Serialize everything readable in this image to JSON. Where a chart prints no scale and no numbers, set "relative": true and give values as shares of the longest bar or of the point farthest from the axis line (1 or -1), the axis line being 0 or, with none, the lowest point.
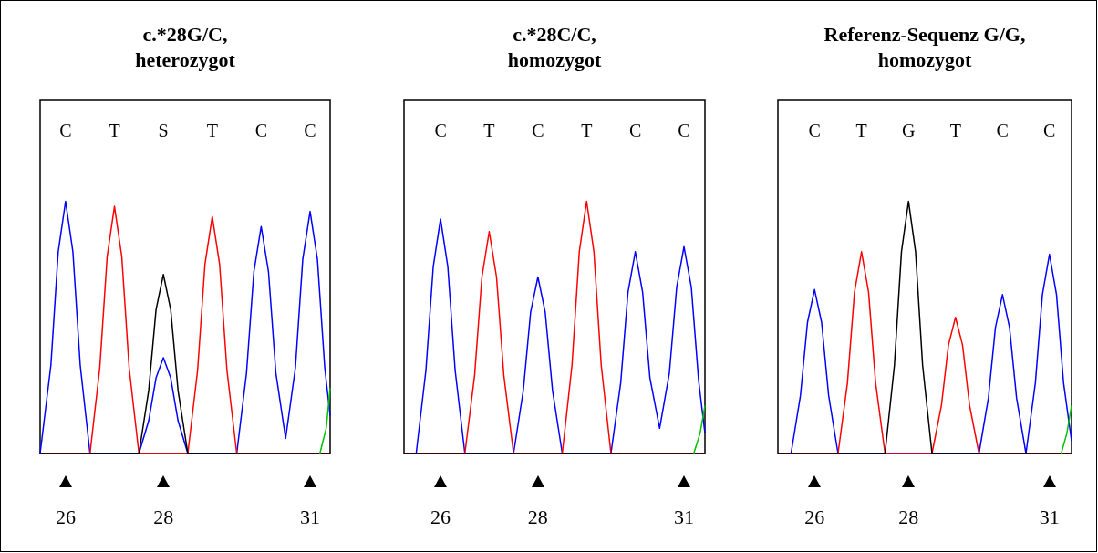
{
  "chart_data": [
    {
      "type": "line",
      "title": "c.*28G/C,\nheterozygot",
      "relative": true,
      "xlim": [
        25.48,
        31.41
      ],
      "xticks": [
        26,
        28,
        31
      ],
      "annotations": [
        "C",
        "T",
        "S",
        "T",
        "C",
        "C"
      ],
      "grid": false,
      "marker": "none",
      "series": [
        {
          "color": "#0000ff",
          "x": [
            25.48,
            25.7,
            25.85,
            26,
            26.15,
            26.3,
            26.5,
            27.5,
            27.7,
            27.85,
            28,
            28.15,
            28.3,
            28.5,
            29.5,
            29.7,
            29.85,
            30,
            30.15,
            30.3,
            30.5,
            30.7,
            30.85,
            31,
            31.15,
            31.3,
            31.41
          ],
          "values": [
            0,
            0.35,
            0.8,
            1,
            0.8,
            0.35,
            0,
            0,
            0.13,
            0.3,
            0.38,
            0.3,
            0.13,
            0,
            0,
            0.32,
            0.72,
            0.9,
            0.72,
            0.32,
            0.06,
            0.34,
            0.77,
            0.96,
            0.77,
            0.34,
            0.15
          ]
        },
        {
          "color": "#ff0000",
          "x": [
            25.48,
            26.5,
            26.7,
            26.85,
            27,
            27.15,
            27.3,
            27.5,
            28.5,
            28.7,
            28.85,
            29,
            29.15,
            29.3,
            29.5,
            31.41
          ],
          "values": [
            0,
            0,
            0.34,
            0.78,
            0.98,
            0.78,
            0.34,
            0,
            0,
            0.33,
            0.75,
            0.94,
            0.75,
            0.33,
            0,
            0
          ]
        },
        {
          "color": "#000000",
          "x": [
            25.48,
            27.5,
            27.7,
            27.85,
            28,
            28.15,
            28.3,
            28.5,
            31.41
          ],
          "values": [
            0,
            0,
            0.25,
            0.57,
            0.71,
            0.57,
            0.25,
            0,
            0
          ]
        },
        {
          "color": "#00c000",
          "x": [
            31.2,
            31.33,
            31.41
          ],
          "values": [
            0,
            0.1,
            0.26
          ]
        }
      ]
    },
    {
      "type": "line",
      "title": "c.*28C/C,\nhomozygot",
      "relative": true,
      "xlim": [
        25.25,
        31.43
      ],
      "xticks": [
        26,
        28,
        31
      ],
      "annotations": [
        "C",
        "T",
        "C",
        "T",
        "C",
        "C"
      ],
      "grid": false,
      "marker": "none",
      "series": [
        {
          "color": "#0000ff",
          "x": [
            25.25,
            25.5,
            25.7,
            25.85,
            26,
            26.15,
            26.3,
            26.5,
            27.5,
            27.7,
            27.85,
            28,
            28.15,
            28.3,
            28.5,
            29.5,
            29.7,
            29.85,
            30,
            30.15,
            30.3,
            30.5,
            30.7,
            30.85,
            31,
            31.15,
            31.3,
            31.43
          ],
          "values": [
            0,
            0,
            0.33,
            0.74,
            0.93,
            0.74,
            0.33,
            0,
            0,
            0.25,
            0.56,
            0.7,
            0.56,
            0.25,
            0,
            0,
            0.28,
            0.64,
            0.8,
            0.64,
            0.3,
            0.1,
            0.32,
            0.66,
            0.82,
            0.66,
            0.29,
            0.08
          ]
        },
        {
          "color": "#ff0000",
          "x": [
            25.25,
            26.5,
            26.7,
            26.85,
            27,
            27.15,
            27.3,
            27.5,
            28.5,
            28.7,
            28.85,
            29,
            29.15,
            29.3,
            29.5,
            31.43
          ],
          "values": [
            0,
            0,
            0.31,
            0.7,
            0.88,
            0.7,
            0.31,
            0,
            0,
            0.35,
            0.8,
            1,
            0.8,
            0.35,
            0,
            0
          ]
        },
        {
          "color": "#000000",
          "x": [
            25.25,
            31.43
          ],
          "values": [
            0,
            0
          ]
        },
        {
          "color": "#00c000",
          "x": [
            31.2,
            31.33,
            31.43
          ],
          "values": [
            0,
            0.08,
            0.19
          ]
        }
      ]
    },
    {
      "type": "line",
      "title": "Referenz-Sequenz G/G,\nhomozygot",
      "relative": true,
      "xlim": [
        25.22,
        31.47
      ],
      "xticks": [
        26,
        28,
        31
      ],
      "annotations": [
        "C",
        "T",
        "G",
        "T",
        "C",
        "C"
      ],
      "grid": false,
      "marker": "none",
      "series": [
        {
          "color": "#0000ff",
          "x": [
            25.22,
            25.5,
            25.7,
            25.85,
            26,
            26.15,
            26.3,
            26.5,
            29.5,
            29.7,
            29.85,
            30,
            30.15,
            30.3,
            30.5,
            30.7,
            30.85,
            31,
            31.15,
            31.3,
            31.47
          ],
          "values": [
            0,
            0,
            0.23,
            0.52,
            0.65,
            0.52,
            0.23,
            0,
            0,
            0.22,
            0.5,
            0.63,
            0.5,
            0.22,
            0,
            0.28,
            0.63,
            0.79,
            0.63,
            0.28,
            0.05
          ]
        },
        {
          "color": "#ff0000",
          "x": [
            25.22,
            26.5,
            26.7,
            26.85,
            27,
            27.15,
            27.3,
            27.5,
            28.5,
            28.7,
            28.85,
            29,
            29.15,
            29.3,
            29.5,
            31.47
          ],
          "values": [
            0,
            0,
            0.28,
            0.64,
            0.8,
            0.64,
            0.28,
            0,
            0,
            0.19,
            0.43,
            0.54,
            0.43,
            0.19,
            0,
            0
          ]
        },
        {
          "color": "#000000",
          "x": [
            25.22,
            27.5,
            27.7,
            27.85,
            28,
            28.15,
            28.3,
            28.5,
            31.47
          ],
          "values": [
            0,
            0,
            0.35,
            0.8,
            1,
            0.8,
            0.35,
            0,
            0
          ]
        },
        {
          "color": "#00c000",
          "x": [
            31.25,
            31.37,
            31.47
          ],
          "values": [
            0,
            0.08,
            0.19
          ]
        }
      ]
    }
  ]
}
